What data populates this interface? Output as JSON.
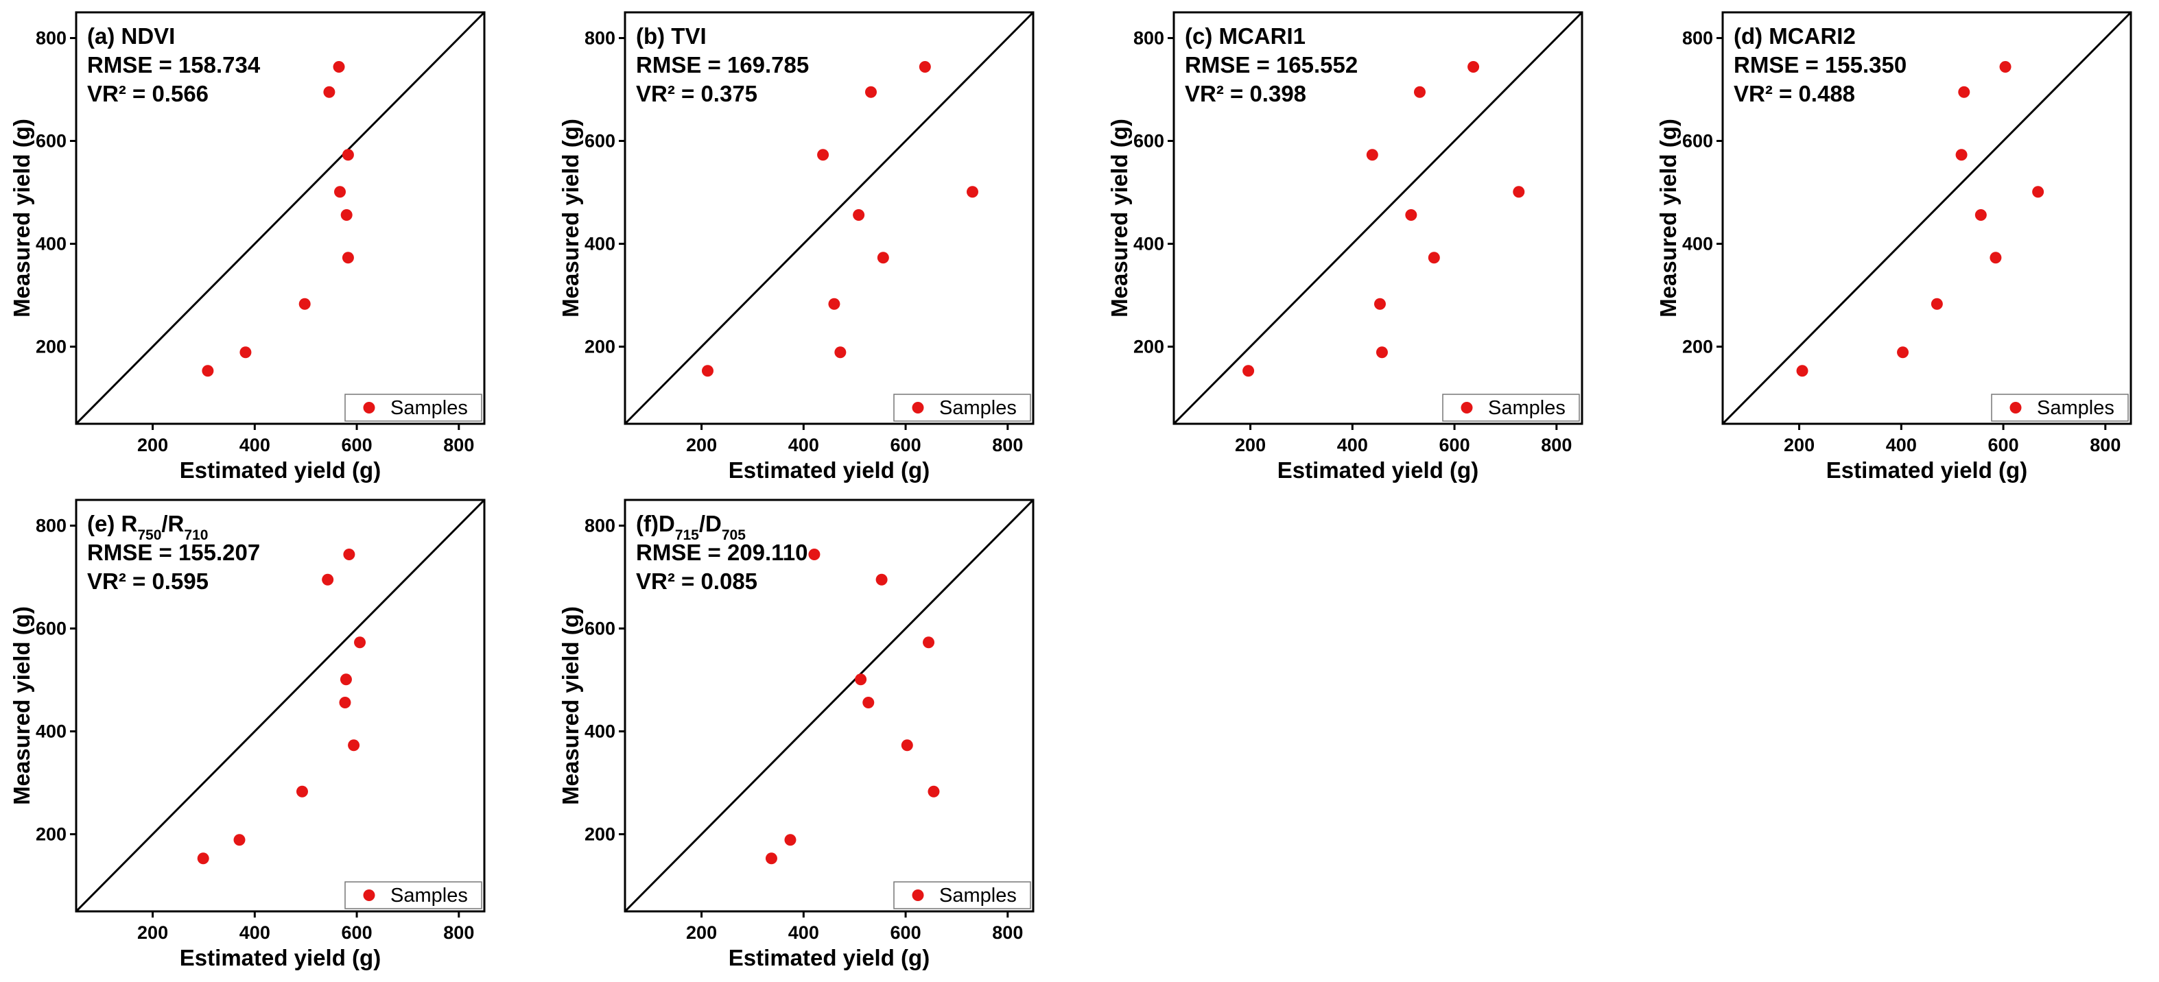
{
  "chart_data": [
    {
      "type": "scatter",
      "panel": "(a)",
      "title": "(a) NDVI",
      "title_parts": [
        {
          "t": "(a) NDVI"
        }
      ],
      "rmse_text": "RMSE = 158.734",
      "vr2_text": "VR² = 0.566",
      "xlabel": "Estimated yield (g)",
      "ylabel": "Measured yield (g)",
      "xlim": [
        50,
        850
      ],
      "ylim": [
        50,
        850
      ],
      "xticks": [
        200,
        400,
        600,
        800
      ],
      "yticks": [
        200,
        400,
        600,
        800
      ],
      "reference_line": "1:1",
      "legend": "Samples",
      "legend_position": "bottom-right",
      "points": [
        [
          308,
          153
        ],
        [
          382,
          189
        ],
        [
          498,
          283
        ],
        [
          583,
          373
        ],
        [
          580,
          456
        ],
        [
          567,
          501
        ],
        [
          583,
          573
        ],
        [
          546,
          695
        ],
        [
          565,
          744
        ]
      ]
    },
    {
      "type": "scatter",
      "panel": "(b)",
      "title": "(b) TVI",
      "title_parts": [
        {
          "t": "(b) TVI"
        }
      ],
      "rmse_text": "RMSE = 169.785",
      "vr2_text": "VR² = 0.375",
      "xlabel": "Estimated yield (g)",
      "ylabel": "Measured yield (g)",
      "xlim": [
        50,
        850
      ],
      "ylim": [
        50,
        850
      ],
      "xticks": [
        200,
        400,
        600,
        800
      ],
      "yticks": [
        200,
        400,
        600,
        800
      ],
      "reference_line": "1:1",
      "legend": "Samples",
      "legend_position": "bottom-right",
      "points": [
        [
          212,
          153
        ],
        [
          472,
          189
        ],
        [
          460,
          283
        ],
        [
          556,
          373
        ],
        [
          508,
          456
        ],
        [
          731,
          501
        ],
        [
          438,
          573
        ],
        [
          532,
          695
        ],
        [
          638,
          744
        ]
      ]
    },
    {
      "type": "scatter",
      "panel": "(c)",
      "title": "(c) MCARI1",
      "title_parts": [
        {
          "t": "(c) MCARI1"
        }
      ],
      "rmse_text": "RMSE = 165.552",
      "vr2_text": "VR² = 0.398",
      "xlabel": "Estimated yield (g)",
      "ylabel": "Measured yield (g)",
      "xlim": [
        50,
        850
      ],
      "ylim": [
        50,
        850
      ],
      "xticks": [
        200,
        400,
        600,
        800
      ],
      "yticks": [
        200,
        400,
        600,
        800
      ],
      "reference_line": "1:1",
      "legend": "Samples",
      "legend_position": "bottom-right",
      "points": [
        [
          196,
          153
        ],
        [
          458,
          189
        ],
        [
          454,
          283
        ],
        [
          560,
          373
        ],
        [
          515,
          456
        ],
        [
          726,
          501
        ],
        [
          439,
          573
        ],
        [
          532,
          695
        ],
        [
          637,
          744
        ]
      ]
    },
    {
      "type": "scatter",
      "panel": "(d)",
      "title": "(d) MCARI2",
      "title_parts": [
        {
          "t": "(d) MCARI2"
        }
      ],
      "rmse_text": "RMSE = 155.350",
      "vr2_text": "VR² = 0.488",
      "xlabel": "Estimated yield (g)",
      "ylabel": "Measured yield (g)",
      "xlim": [
        50,
        850
      ],
      "ylim": [
        50,
        850
      ],
      "xticks": [
        200,
        400,
        600,
        800
      ],
      "yticks": [
        200,
        400,
        600,
        800
      ],
      "reference_line": "1:1",
      "legend": "Samples",
      "legend_position": "bottom-right",
      "points": [
        [
          206,
          153
        ],
        [
          403,
          189
        ],
        [
          470,
          283
        ],
        [
          585,
          373
        ],
        [
          556,
          456
        ],
        [
          668,
          501
        ],
        [
          518,
          573
        ],
        [
          523,
          695
        ],
        [
          604,
          744
        ]
      ]
    },
    {
      "type": "scatter",
      "panel": "(e)",
      "title": "(e) R750/R710",
      "title_parts": [
        {
          "t": "(e) R"
        },
        {
          "t": "750",
          "sub": true
        },
        {
          "t": "/R"
        },
        {
          "t": "710",
          "sub": true
        }
      ],
      "rmse_text": "RMSE = 155.207",
      "vr2_text": "VR² = 0.595",
      "xlabel": "Estimated yield (g)",
      "ylabel": "Measured yield (g)",
      "xlim": [
        50,
        850
      ],
      "ylim": [
        50,
        850
      ],
      "xticks": [
        200,
        400,
        600,
        800
      ],
      "yticks": [
        200,
        400,
        600,
        800
      ],
      "reference_line": "1:1",
      "legend": "Samples",
      "legend_position": "bottom-right",
      "points": [
        [
          299,
          153
        ],
        [
          370,
          189
        ],
        [
          493,
          283
        ],
        [
          594,
          373
        ],
        [
          577,
          456
        ],
        [
          579,
          501
        ],
        [
          606,
          573
        ],
        [
          543,
          695
        ],
        [
          585,
          744
        ]
      ]
    },
    {
      "type": "scatter",
      "panel": "(f)",
      "title": "(f)D715/D705",
      "title_parts": [
        {
          "t": "(f)D"
        },
        {
          "t": "715",
          "sub": true
        },
        {
          "t": "/D"
        },
        {
          "t": "705",
          "sub": true
        }
      ],
      "rmse_text": "RMSE = 209.110",
      "vr2_text": "VR² = 0.085",
      "xlabel": "Estimated yield (g)",
      "ylabel": "Measured yield (g)",
      "xlim": [
        50,
        850
      ],
      "ylim": [
        50,
        850
      ],
      "xticks": [
        200,
        400,
        600,
        800
      ],
      "yticks": [
        200,
        400,
        600,
        800
      ],
      "reference_line": "1:1",
      "legend": "Samples",
      "legend_position": "bottom-right",
      "points": [
        [
          337,
          153
        ],
        [
          374,
          189
        ],
        [
          655,
          283
        ],
        [
          603,
          373
        ],
        [
          527,
          456
        ],
        [
          512,
          501
        ],
        [
          645,
          573
        ],
        [
          553,
          695
        ],
        [
          421,
          744
        ]
      ]
    }
  ],
  "colors": {
    "marker": "#e51515",
    "line": "#000000",
    "axis": "#000000",
    "background": "#ffffff"
  }
}
